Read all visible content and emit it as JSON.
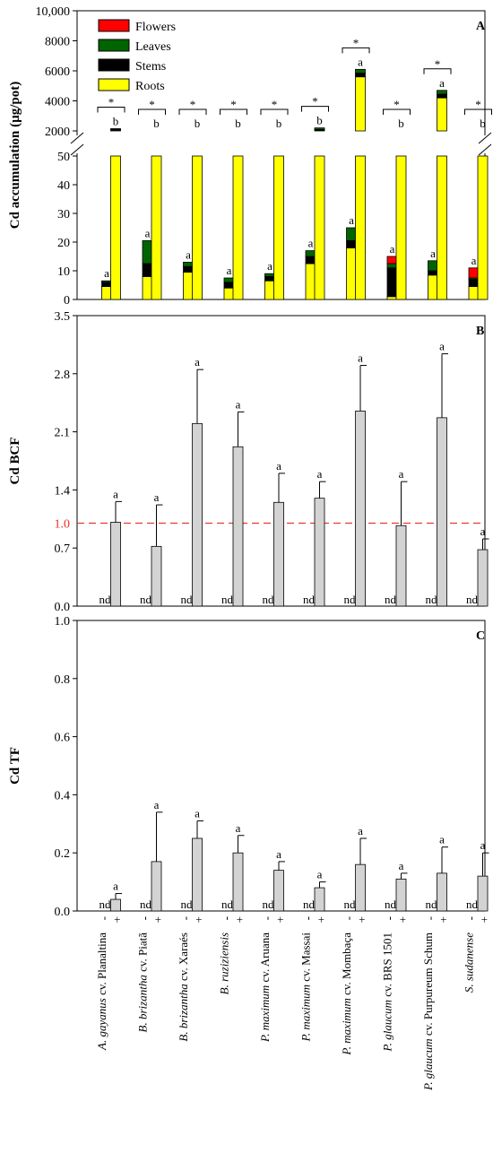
{
  "species": [
    {
      "italic": "A. gayanus",
      "rest": " cv. Planaltina"
    },
    {
      "italic": "B. brizantha",
      "rest": " cv. Piatã"
    },
    {
      "italic": "B. brizantha",
      "rest": " cv. Xaraés"
    },
    {
      "italic": "B. ruziziensis",
      "rest": ""
    },
    {
      "italic": "P. maximum",
      "rest": " cv. Aruana"
    },
    {
      "italic": "P. maximum",
      "rest": " cv. Massai"
    },
    {
      "italic": "P. maximum",
      "rest": " cv. Mombaça"
    },
    {
      "italic": "P. glaucum",
      "rest": " cv. BRS 1501"
    },
    {
      "italic": "P. glaucum",
      "rest": " cv. Purpureum Schum"
    },
    {
      "italic": "S. sudanense",
      "rest": ""
    }
  ],
  "treatments": [
    "-",
    "+"
  ],
  "chart_data": [
    {
      "panel": "A",
      "type": "bar",
      "stacked": true,
      "broken_axis": true,
      "ylabel": "Cd accumulation (µg/pot)",
      "lower_ticks": [
        "0",
        "10",
        "20",
        "30",
        "40",
        "50"
      ],
      "upper_ticks": [
        "2000",
        "4000",
        "6000",
        "8000",
        "10,000"
      ],
      "lower_ylim": [
        0,
        50
      ],
      "upper_ylim": [
        2000,
        10000
      ],
      "legend": [
        "Flowers",
        "Leaves",
        "Stems",
        "Roots"
      ],
      "legend_position": "top-left",
      "colors": {
        "Flowers": "#ff0000",
        "Leaves": "#006400",
        "Stems": "#000000",
        "Roots": "#ffff00"
      },
      "minus_bars": [
        {
          "roots": 4.5,
          "stems": 1.5,
          "leaves": 0.5,
          "flowers": 0,
          "letter": "a"
        },
        {
          "roots": 8,
          "stems": 4.5,
          "leaves": 8,
          "flowers": 0,
          "letter": "a"
        },
        {
          "roots": 9.5,
          "stems": 2,
          "leaves": 1.5,
          "flowers": 0,
          "letter": "a"
        },
        {
          "roots": 4,
          "stems": 2,
          "leaves": 1.5,
          "flowers": 0,
          "letter": "a"
        },
        {
          "roots": 6.5,
          "stems": 1.5,
          "leaves": 1,
          "flowers": 0,
          "letter": "a"
        },
        {
          "roots": 12.5,
          "stems": 2.5,
          "leaves": 2,
          "flowers": 0,
          "letter": "a"
        },
        {
          "roots": 18,
          "stems": 2.5,
          "leaves": 4.5,
          "flowers": 0,
          "letter": "a"
        },
        {
          "roots": 1,
          "stems": 10,
          "leaves": 1.5,
          "flowers": 2.5,
          "letter": "a"
        },
        {
          "roots": 8.5,
          "stems": 1.5,
          "leaves": 3.5,
          "flowers": 0,
          "letter": "a"
        },
        {
          "roots": 4.5,
          "stems": 2.5,
          "leaves": 0.5,
          "flowers": 3.5,
          "letter": "a"
        }
      ],
      "plus_bars": [
        {
          "roots": 2050,
          "stems": 50,
          "leaves": 50,
          "flowers": 0,
          "letter": "b"
        },
        {
          "roots": 1500,
          "stems": 100,
          "leaves": 100,
          "flowers": 0,
          "letter": "b"
        },
        {
          "roots": 1550,
          "stems": 250,
          "leaves": 200,
          "flowers": 0,
          "letter": "b"
        },
        {
          "roots": 1500,
          "stems": 250,
          "leaves": 200,
          "flowers": 0,
          "letter": "b"
        },
        {
          "roots": 750,
          "stems": 50,
          "leaves": 100,
          "flowers": 0,
          "letter": "b"
        },
        {
          "roots": 1950,
          "stems": 150,
          "leaves": 100,
          "flowers": 0,
          "letter": "b"
        },
        {
          "roots": 5600,
          "stems": 250,
          "leaves": 250,
          "flowers": 0,
          "letter": "a"
        },
        {
          "roots": 700,
          "stems": 100,
          "leaves": 100,
          "flowers": 300,
          "letter": "b"
        },
        {
          "roots": 4200,
          "stems": 250,
          "leaves": 250,
          "flowers": 0,
          "letter": "a"
        },
        {
          "roots": 650,
          "stems": 100,
          "leaves": 50,
          "flowers": 250,
          "letter": "b"
        }
      ],
      "significance": [
        "*",
        "*",
        "*",
        "*",
        "*",
        "*",
        "*",
        "*",
        "*",
        "*"
      ]
    },
    {
      "panel": "B",
      "type": "bar",
      "ylabel": "Cd BCF",
      "ylim": [
        0,
        3.5
      ],
      "ticks": [
        "0.0",
        "0.7",
        "1.4",
        "2.1",
        "2.8",
        "3.5"
      ],
      "reference_line": {
        "value": 1.0,
        "label": "1.0",
        "color": "#e8302a"
      },
      "bar_color": "#d3d3d3",
      "minus_label": "nd",
      "values": [
        1.01,
        0.72,
        2.2,
        1.92,
        1.25,
        1.3,
        2.35,
        0.97,
        2.27,
        0.68
      ],
      "errors": [
        0.25,
        0.5,
        0.65,
        0.42,
        0.35,
        0.2,
        0.55,
        0.53,
        0.77,
        0.13
      ],
      "letters": [
        "a",
        "a",
        "a",
        "a",
        "a",
        "a",
        "a",
        "a",
        "a",
        "a"
      ]
    },
    {
      "panel": "C",
      "type": "bar",
      "ylabel": "Cd TF",
      "ylim": [
        0,
        1.0
      ],
      "ticks": [
        "0.0",
        "0.2",
        "0.4",
        "0.6",
        "0.8",
        "1.0"
      ],
      "bar_color": "#d3d3d3",
      "minus_label": "nd",
      "values": [
        0.04,
        0.17,
        0.25,
        0.2,
        0.14,
        0.08,
        0.16,
        0.11,
        0.13,
        0.12
      ],
      "errors": [
        0.02,
        0.17,
        0.06,
        0.06,
        0.03,
        0.02,
        0.09,
        0.02,
        0.09,
        0.08
      ],
      "letters": [
        "a",
        "a",
        "a",
        "a",
        "a",
        "a",
        "a",
        "a",
        "a",
        "a"
      ]
    }
  ]
}
